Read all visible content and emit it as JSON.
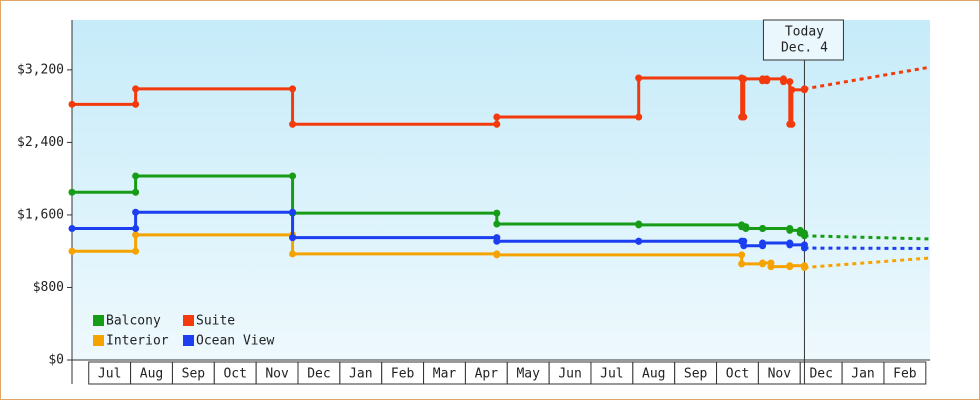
{
  "chart_data": {
    "type": "step-line",
    "categories": [
      "Jul",
      "Aug",
      "Sep",
      "Oct",
      "Nov",
      "Dec",
      "Jan",
      "Feb",
      "Mar",
      "Apr",
      "May",
      "Jun",
      "Jul",
      "Aug",
      "Sep",
      "Oct",
      "Nov",
      "Dec",
      "Jan",
      "Feb"
    ],
    "xlim": [
      -0.4,
      20.1
    ],
    "ylim": [
      0,
      3750
    ],
    "yticks": [
      {
        "value": 0,
        "label": "$0"
      },
      {
        "value": 800,
        "label": "$800"
      },
      {
        "value": 1600,
        "label": "$1,600"
      },
      {
        "value": 2400,
        "label": "$2,400"
      },
      {
        "value": 3200,
        "label": "$3,200"
      }
    ],
    "annotation": {
      "x": 17.1,
      "lines": [
        "Today",
        "Dec. 4"
      ]
    },
    "legend": "bottom-left",
    "series": [
      {
        "name": "Balcony",
        "color": "#179c17",
        "x": [
          -0.4,
          1.12,
          4.87,
          9.75,
          13.14,
          15.6,
          15.7,
          16.1,
          16.75,
          17.0,
          17.1
        ],
        "values": [
          1850,
          2030,
          1620,
          1500,
          1490,
          1470,
          1450,
          1450,
          1430,
          1400,
          1370
        ],
        "forecast": {
          "x": [
            17.1,
            20.1
          ],
          "values": [
            1370,
            1335
          ]
        }
      },
      {
        "name": "Suite",
        "color": "#f23a0c",
        "x": [
          -0.4,
          1.12,
          4.87,
          9.75,
          13.14,
          15.6,
          15.65,
          16.1,
          16.2,
          16.6,
          16.75,
          16.8,
          17.1
        ],
        "values": [
          2820,
          2990,
          2600,
          2680,
          3110,
          2680,
          3100,
          3080,
          3100,
          3070,
          2600,
          2980,
          2990
        ],
        "forecast": {
          "x": [
            17.1,
            20.1
          ],
          "values": [
            2990,
            3230
          ]
        }
      },
      {
        "name": "Interior",
        "color": "#f5a300",
        "x": [
          -0.4,
          1.12,
          4.87,
          9.75,
          15.6,
          16.1,
          16.3,
          16.75,
          17.1
        ],
        "values": [
          1200,
          1380,
          1170,
          1160,
          1060,
          1070,
          1030,
          1040,
          1020
        ],
        "forecast": {
          "x": [
            17.1,
            20.1
          ],
          "values": [
            1020,
            1125
          ]
        }
      },
      {
        "name": "Ocean View",
        "color": "#1a3ef0",
        "x": [
          -0.4,
          1.12,
          4.87,
          9.75,
          13.14,
          15.6,
          15.65,
          16.1,
          16.75,
          17.1
        ],
        "values": [
          1450,
          1630,
          1350,
          1310,
          1310,
          1310,
          1260,
          1290,
          1270,
          1235
        ],
        "forecast": {
          "x": [
            17.1,
            20.1
          ],
          "values": [
            1235,
            1230
          ]
        }
      }
    ]
  }
}
